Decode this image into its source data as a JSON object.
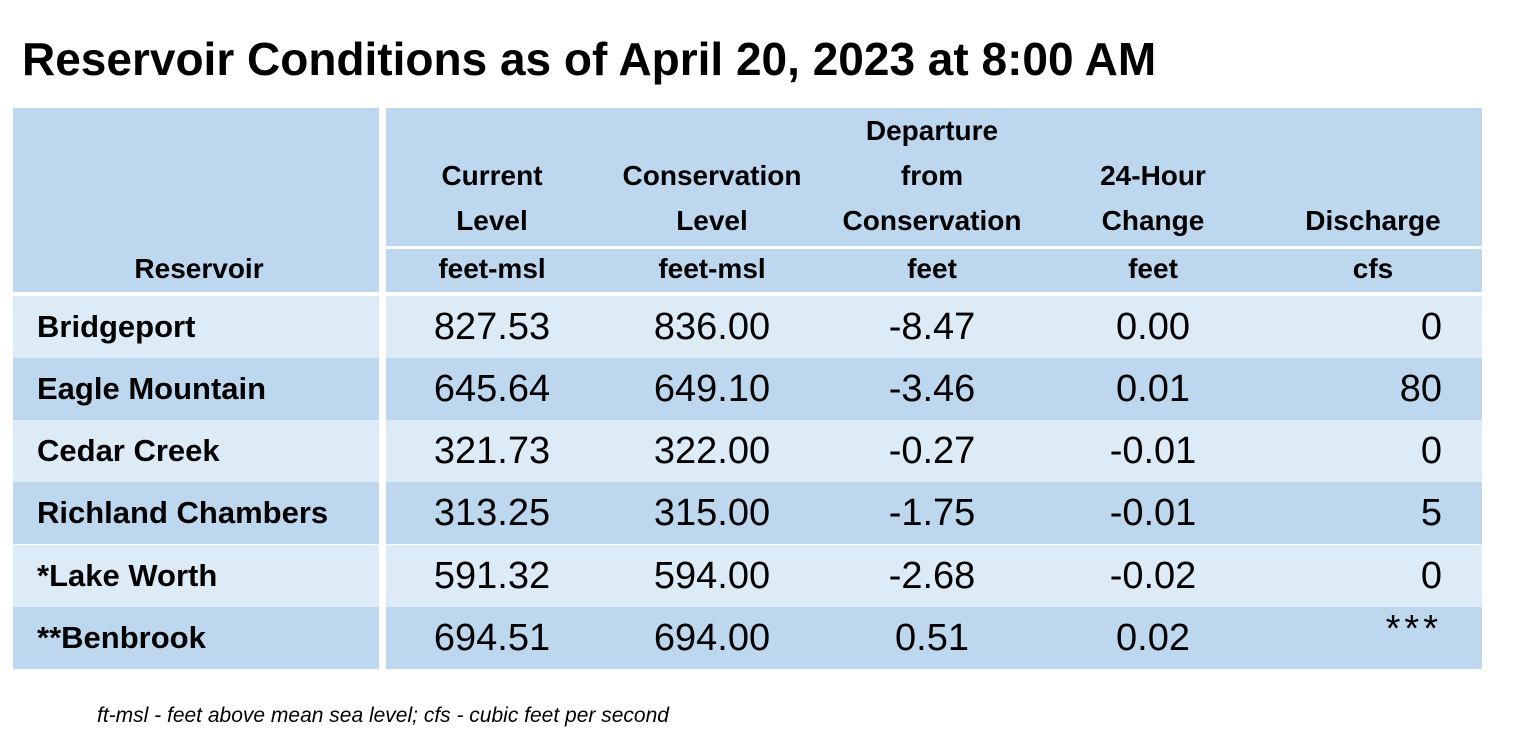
{
  "title": "Reservoir Conditions as of April 20, 2023 at 8:00 AM",
  "headers": {
    "reservoir": "Reservoir",
    "current_1": "Current",
    "current_2": "Level",
    "current_unit": "feet-msl",
    "conservation_1": "Conservation",
    "conservation_2": "Level",
    "conservation_unit": "feet-msl",
    "departure_1": "Departure",
    "departure_2": "from",
    "departure_3": "Conservation",
    "departure_unit": "feet",
    "change_1": "24-Hour",
    "change_2": "Change",
    "change_unit": "feet",
    "discharge_1": "Discharge",
    "discharge_unit": "cfs"
  },
  "rows": [
    {
      "name": "Bridgeport",
      "current": "827.53",
      "conservation": "836.00",
      "departure": "-8.47",
      "change": "0.00",
      "discharge": "0"
    },
    {
      "name": "Eagle Mountain",
      "current": "645.64",
      "conservation": "649.10",
      "departure": "-3.46",
      "change": "0.01",
      "discharge": "80"
    },
    {
      "name": "Cedar Creek",
      "current": "321.73",
      "conservation": "322.00",
      "departure": "-0.27",
      "change": "-0.01",
      "discharge": "0"
    },
    {
      "name": "Richland Chambers",
      "current": "313.25",
      "conservation": "315.00",
      "departure": "-1.75",
      "change": "-0.01",
      "discharge": "5"
    },
    {
      "name": "*Lake Worth",
      "current": "591.32",
      "conservation": "594.00",
      "departure": "-2.68",
      "change": "-0.02",
      "discharge": "0"
    },
    {
      "name": "**Benbrook",
      "current": "694.51",
      "conservation": "694.00",
      "departure": "0.51",
      "change": "0.02",
      "discharge": "***"
    }
  ],
  "footnote": "ft-msl - feet above mean sea level; cfs - cubic feet per second",
  "colors": {
    "header_bg": "#bdd7ee",
    "row_light": "#ddebf7",
    "row_dark": "#bdd7ee"
  }
}
